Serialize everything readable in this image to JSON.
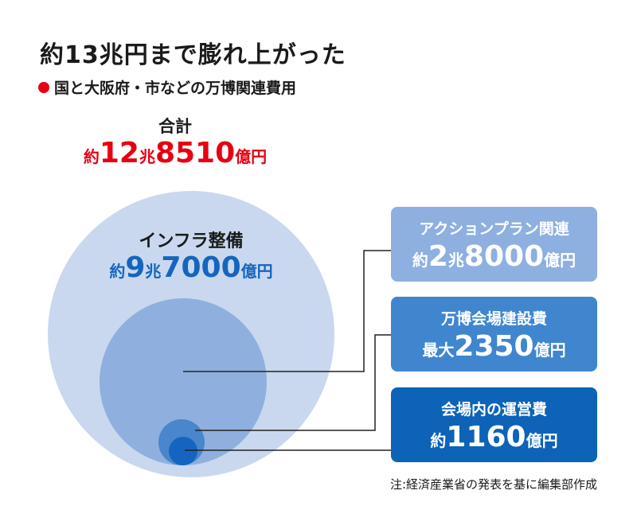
{
  "title": "約13兆円まで膨れ上がった",
  "subtitle": "国と大阪府・市などの万博関連費用",
  "total": {
    "label": "合計",
    "prefix": "約",
    "v1": "12",
    "u1": "兆",
    "v2": "8510",
    "u2": "億円"
  },
  "infra": {
    "label": "インフラ整備",
    "prefix": "約",
    "v1": "9",
    "u1": "兆",
    "v2": "7000",
    "u2": "億円"
  },
  "boxes": [
    {
      "label": "アクションプラン関連",
      "prefix": "約",
      "v1": "2",
      "u1": "兆",
      "v2": "8000",
      "u2": "億円",
      "color": "#8eb0e0"
    },
    {
      "label": "万博会場建設費",
      "prefix": "最大",
      "v1": "",
      "u1": "",
      "v2": "2350",
      "u2": "億円",
      "color": "#3f86cf"
    },
    {
      "label": "会場内の運営費",
      "prefix": "約",
      "v1": "",
      "u1": "",
      "v2": "1160",
      "u2": "億円",
      "color": "#0c63b8"
    }
  ],
  "note": "注:経済産業省の発表を基に編集部作成",
  "chart_data": {
    "type": "nested-bubble",
    "unit": "億円",
    "total": 128510,
    "items": [
      {
        "name": "インフラ整備",
        "value": 97000,
        "color": "#c9d8ee"
      },
      {
        "name": "アクションプラン関連",
        "value": 28000,
        "color": "#8fb0de"
      },
      {
        "name": "万博会場建設費",
        "value": 2350,
        "color": "#4a86cc"
      },
      {
        "name": "会場内の運営費",
        "value": 1160,
        "color": "#1565c0"
      }
    ]
  }
}
